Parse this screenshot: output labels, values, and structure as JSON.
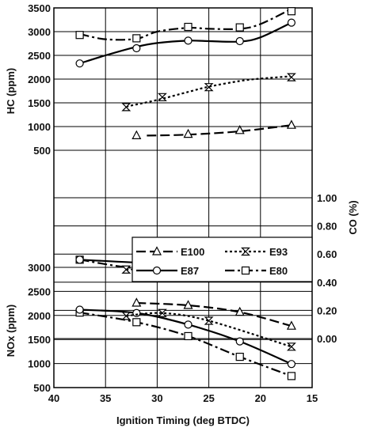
{
  "chart_data": [
    {
      "type": "line",
      "panel": "hc",
      "ylabel": "HC (ppm)",
      "xlim": [
        40,
        15
      ],
      "ylim": [
        0,
        3500
      ],
      "yticks": [
        500,
        1000,
        1500,
        2000,
        2500,
        3000,
        3500
      ],
      "grid": true,
      "series": [
        {
          "name": "E80",
          "marker": "square",
          "dash": "dashdot",
          "x": [
            37.5,
            32,
            27,
            22,
            17
          ],
          "y": [
            2930,
            2860,
            3100,
            3090,
            3430
          ],
          "fit_x": [
            37.5,
            35,
            32,
            30,
            27,
            25,
            22,
            20,
            17
          ],
          "fit_y": [
            2950,
            2840,
            2850,
            3000,
            3080,
            3060,
            3060,
            3160,
            3480
          ]
        },
        {
          "name": "E87",
          "marker": "circle",
          "dash": "solid",
          "x": [
            37.5,
            32,
            27,
            22,
            17
          ],
          "y": [
            2330,
            2650,
            2810,
            2800,
            3190
          ],
          "fit_x": [
            37.5,
            35,
            32,
            30,
            27,
            25,
            22,
            20,
            17
          ],
          "fit_y": [
            2330,
            2500,
            2680,
            2760,
            2810,
            2800,
            2790,
            2880,
            3190
          ]
        },
        {
          "name": "E93",
          "marker": "hourglass",
          "dash": "dotted",
          "x": [
            33,
            29.5,
            25,
            17
          ],
          "y": [
            1410,
            1620,
            1830,
            2040
          ],
          "fit_x": [
            33,
            30,
            27,
            25,
            22,
            20,
            17
          ],
          "fit_y": [
            1420,
            1560,
            1730,
            1840,
            1960,
            2010,
            2060
          ]
        },
        {
          "name": "E100",
          "marker": "triangle",
          "dash": "longdash",
          "x": [
            32,
            27,
            22,
            17
          ],
          "y": [
            810,
            840,
            920,
            1030
          ],
          "fit_x": [
            31,
            27,
            22,
            17
          ],
          "fit_y": [
            810,
            830,
            900,
            1030
          ]
        }
      ]
    },
    {
      "type": "line",
      "panel": "co",
      "ylabel": "CO (%)",
      "ylim": [
        -0.2,
        1.2
      ],
      "yticks": [
        "0.00",
        "0.20",
        "0.40",
        "0.60",
        "0.80",
        "1.00"
      ],
      "grid": true,
      "series": [
        {
          "name": "E80",
          "marker": "square",
          "dash": "dashdot",
          "x": [
            37.5,
            32,
            27,
            22,
            17
          ],
          "y": [
            0.56,
            0.5,
            0.52,
            0.53,
            0.56
          ]
        },
        {
          "name": "E87",
          "marker": "circle",
          "dash": "solid",
          "x": [
            37.5,
            32,
            27,
            22,
            17
          ],
          "y": [
            0.56,
            0.54,
            0.53,
            0.51,
            0.58
          ]
        },
        {
          "name": "E93",
          "marker": "hourglass",
          "dash": "dotted",
          "x": [
            33,
            29.5,
            25,
            17
          ],
          "y": [
            0.49,
            0.5,
            0.51,
            0.52
          ]
        },
        {
          "name": "E100",
          "marker": "triangle",
          "dash": "longdash",
          "x": [
            32,
            27,
            22,
            17
          ],
          "y": [
            0.48,
            0.52,
            0.5,
            0.51
          ]
        }
      ]
    },
    {
      "type": "line",
      "panel": "nox",
      "ylabel": "NOx (ppm)",
      "xlabel": "Ignition Timing (deg BTDC)",
      "xlim": [
        40,
        15
      ],
      "xticks": [
        40,
        35,
        30,
        25,
        20,
        15
      ],
      "ylim": [
        500,
        3000
      ],
      "yticks": [
        500,
        1000,
        1500,
        2000,
        2500,
        3000
      ],
      "grid": true,
      "series": [
        {
          "name": "E80",
          "marker": "square",
          "dash": "dashdot",
          "x": [
            37.5,
            32,
            27,
            22,
            17
          ],
          "y": [
            2060,
            1860,
            1570,
            1140,
            740
          ]
        },
        {
          "name": "E87",
          "marker": "circle",
          "dash": "solid",
          "x": [
            37.5,
            32,
            27,
            22,
            17
          ],
          "y": [
            2120,
            2050,
            1810,
            1460,
            990
          ]
        },
        {
          "name": "E93",
          "marker": "hourglass",
          "dash": "dotted",
          "x": [
            33,
            29.5,
            25,
            17
          ],
          "y": [
            1990,
            2050,
            1890,
            1350
          ]
        },
        {
          "name": "E100",
          "marker": "triangle",
          "dash": "longdash",
          "x": [
            32,
            27,
            22,
            17
          ],
          "y": [
            2260,
            2210,
            2070,
            1780
          ]
        }
      ]
    }
  ],
  "legend": {
    "placement": "middle-right",
    "entries": [
      "E100",
      "E93",
      "E87",
      "E80"
    ]
  }
}
